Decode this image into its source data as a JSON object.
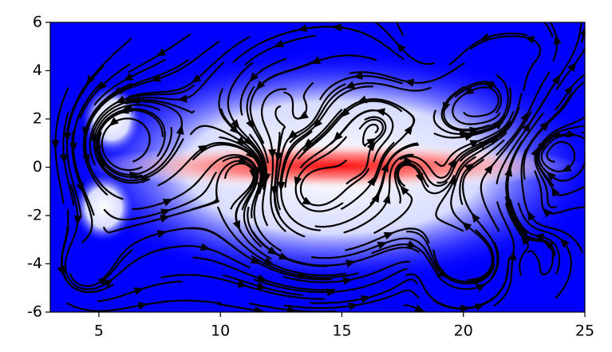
{
  "chart_data": {
    "type": "streamplot",
    "xlim": [
      3,
      25
    ],
    "xticks": [
      5,
      10,
      15,
      20,
      25
    ],
    "ylim": [
      -6,
      6
    ],
    "yticks": [
      -6,
      -4,
      -2,
      0,
      2,
      4,
      6
    ],
    "color": "#000000",
    "colormap": "bwr"
  }
}
